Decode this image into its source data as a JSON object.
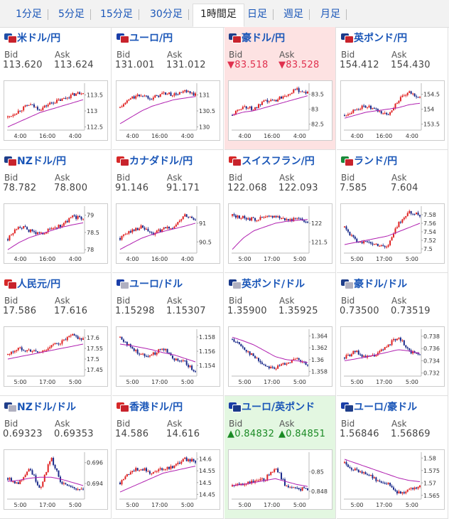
{
  "tabs": [
    {
      "label": "1分足",
      "active": false
    },
    {
      "label": "5分足",
      "active": false
    },
    {
      "label": "15分足",
      "active": false
    },
    {
      "label": "30分足",
      "active": false
    },
    {
      "label": "1時間足",
      "active": true
    },
    {
      "label": "日足",
      "active": false
    },
    {
      "label": "週足",
      "active": false
    },
    {
      "label": "月足",
      "active": false
    }
  ],
  "labels": {
    "bid": "Bid",
    "ask": "Ask"
  },
  "pairs": [
    {
      "name": "米ドル/円",
      "bid": "113.620",
      "ask": "113.624",
      "state": "none",
      "flag": [
        "#1f4ea6",
        "#c8232c"
      ],
      "chart_data": {
        "type": "candlestick",
        "yticks": [
          "113.5",
          "113",
          "112.5"
        ],
        "ylim": [
          112.4,
          113.8
        ],
        "xticks": [
          "4:00",
          "16:00",
          "4:00"
        ],
        "trend": [
          112.8,
          113.0,
          113.2,
          113.05,
          113.25,
          113.35,
          113.5,
          113.6
        ],
        "ma": [
          112.5,
          112.65,
          112.8,
          112.95,
          113.05,
          113.15,
          113.25,
          113.35
        ]
      }
    },
    {
      "name": "ユーロ/円",
      "bid": "131.001",
      "ask": "131.012",
      "state": "none",
      "flag": [
        "#1a3ea8",
        "#c8232c"
      ],
      "chart_data": {
        "type": "candlestick",
        "yticks": [
          "131",
          "130.5",
          "130"
        ],
        "ylim": [
          129.9,
          131.3
        ],
        "xticks": [
          "4:00",
          "16:00",
          "4:00"
        ],
        "trend": [
          130.6,
          130.9,
          131.0,
          130.9,
          131.05,
          131.0,
          131.1,
          131.0
        ],
        "ma": [
          130.1,
          130.3,
          130.5,
          130.65,
          130.75,
          130.85,
          130.9,
          130.95
        ]
      }
    },
    {
      "name": "豪ドル/円",
      "bid": "▼83.518",
      "ask": "▼83.528",
      "state": "down",
      "flag": [
        "#1f3e8a",
        "#c8232c"
      ],
      "chart_data": {
        "type": "candlestick",
        "yticks": [
          "83.5",
          "83",
          "82.5"
        ],
        "ylim": [
          82.3,
          83.8
        ],
        "xticks": [
          "4:00",
          "16:00",
          "4:00"
        ],
        "trend": [
          82.8,
          83.1,
          83.0,
          83.25,
          83.3,
          83.5,
          83.65,
          83.55
        ],
        "ma": [
          82.8,
          82.9,
          82.95,
          83.05,
          83.15,
          83.25,
          83.35,
          83.45
        ]
      }
    },
    {
      "name": "英ポンド/円",
      "bid": "154.412",
      "ask": "154.430",
      "state": "none",
      "flag": [
        "#1a3a8a",
        "#c8232c"
      ],
      "chart_data": {
        "type": "candlestick",
        "yticks": [
          "154.5",
          "154",
          "153.5"
        ],
        "ylim": [
          153.3,
          154.8
        ],
        "xticks": [
          "4:00",
          "16:00",
          "4:00"
        ],
        "trend": [
          153.8,
          154.0,
          154.1,
          153.95,
          153.8,
          154.3,
          154.55,
          154.4
        ],
        "ma": [
          153.7,
          153.8,
          153.9,
          153.95,
          154.0,
          154.05,
          154.15,
          154.2
        ]
      }
    },
    {
      "name": "NZドル/円",
      "bid": "78.782",
      "ask": "78.800",
      "state": "none",
      "flag": [
        "#1f3e8a",
        "#c8232c"
      ],
      "chart_data": {
        "type": "candlestick",
        "yticks": [
          "79",
          "78.5",
          "78"
        ],
        "ylim": [
          77.9,
          79.2
        ],
        "xticks": [
          "4:00",
          "16:00",
          "4:00"
        ],
        "trend": [
          78.3,
          78.7,
          78.55,
          78.45,
          78.6,
          78.7,
          78.95,
          78.9
        ],
        "ma": [
          78.0,
          78.2,
          78.35,
          78.45,
          78.55,
          78.65,
          78.72,
          78.78
        ]
      }
    },
    {
      "name": "カナダドル/円",
      "bid": "91.146",
      "ask": "91.171",
      "state": "none",
      "flag": [
        "#d62828",
        "#c8232c"
      ],
      "chart_data": {
        "type": "candlestick",
        "yticks": [
          "91",
          "90.5"
        ],
        "ylim": [
          90.2,
          91.4
        ],
        "xticks": [
          "4:00",
          "16:00",
          "4:00"
        ],
        "trend": [
          90.6,
          90.8,
          90.9,
          90.7,
          90.85,
          90.9,
          91.2,
          91.1
        ],
        "ma": [
          90.3,
          90.45,
          90.6,
          90.7,
          90.78,
          90.85,
          90.92,
          91.0
        ]
      }
    },
    {
      "name": "スイスフラン/円",
      "bid": "122.068",
      "ask": "122.093",
      "state": "none",
      "flag": [
        "#d62828",
        "#c8232c"
      ],
      "chart_data": {
        "type": "candlestick",
        "yticks": [
          "122",
          "121.5"
        ],
        "ylim": [
          121.2,
          122.4
        ],
        "xticks": [
          "5:00",
          "17:00",
          "5:00"
        ],
        "trend": [
          122.2,
          122.15,
          122.1,
          122.15,
          122.2,
          122.1,
          122.1,
          122.05
        ],
        "ma": [
          121.3,
          121.6,
          121.8,
          121.9,
          122.0,
          122.05,
          122.08,
          122.1
        ]
      }
    },
    {
      "name": "ランド/円",
      "bid": "7.585",
      "ask": "7.604",
      "state": "none",
      "flag": [
        "#1a8a3a",
        "#c8232c"
      ],
      "chart_data": {
        "type": "candlestick",
        "yticks": [
          "7.58",
          "7.56",
          "7.54",
          "7.52",
          "7.5"
        ],
        "ylim": [
          7.49,
          7.595
        ],
        "xticks": [
          "5:00",
          "17:00",
          "5:00"
        ],
        "trend": [
          7.55,
          7.52,
          7.515,
          7.51,
          7.505,
          7.56,
          7.585,
          7.58
        ],
        "ma": [
          7.51,
          7.515,
          7.52,
          7.525,
          7.53,
          7.54,
          7.55,
          7.56
        ]
      }
    },
    {
      "name": "人民元/円",
      "bid": "17.586",
      "ask": "17.616",
      "state": "none",
      "flag": [
        "#d62828",
        "#c8232c"
      ],
      "chart_data": {
        "type": "candlestick",
        "yticks": [
          "17.6",
          "17.55",
          "17.5",
          "17.45"
        ],
        "ylim": [
          17.42,
          17.63
        ],
        "xticks": [
          "5:00",
          "17:00",
          "5:00"
        ],
        "trend": [
          17.52,
          17.55,
          17.54,
          17.53,
          17.56,
          17.58,
          17.61,
          17.59
        ],
        "ma": [
          17.5,
          17.51,
          17.52,
          17.53,
          17.54,
          17.55,
          17.56,
          17.57
        ]
      }
    },
    {
      "name": "ユーロ/ドル",
      "bid": "1.15298",
      "ask": "1.15307",
      "state": "none",
      "flag": [
        "#1a3ea8",
        "#b0b0c0"
      ],
      "chart_data": {
        "type": "candlestick",
        "yticks": [
          "1.158",
          "1.156",
          "1.154"
        ],
        "ylim": [
          1.1525,
          1.1588
        ],
        "xticks": [
          "5:00",
          "17:00",
          "5:00"
        ],
        "trend": [
          1.158,
          1.1565,
          1.1555,
          1.1555,
          1.1565,
          1.155,
          1.1545,
          1.153
        ],
        "ma": [
          1.157,
          1.1568,
          1.1565,
          1.1562,
          1.1558,
          1.1555,
          1.155,
          1.1545
        ]
      }
    },
    {
      "name": "英ポンド/ドル",
      "bid": "1.35900",
      "ask": "1.35925",
      "state": "none",
      "flag": [
        "#1a3a8a",
        "#b0b0c0"
      ],
      "chart_data": {
        "type": "candlestick",
        "yticks": [
          "1.364",
          "1.362",
          "1.36",
          "1.358"
        ],
        "ylim": [
          1.3572,
          1.3648
        ],
        "xticks": [
          "5:00",
          "17:00",
          "5:00"
        ],
        "trend": [
          1.3635,
          1.362,
          1.3605,
          1.359,
          1.3585,
          1.3595,
          1.36,
          1.359
        ],
        "ma": [
          1.3638,
          1.3632,
          1.3625,
          1.3615,
          1.3605,
          1.36,
          1.3598,
          1.3595
        ]
      }
    },
    {
      "name": "豪ドル/ドル",
      "bid": "0.73500",
      "ask": "0.73519",
      "state": "none",
      "flag": [
        "#1f3e8a",
        "#b0b0c0"
      ],
      "chart_data": {
        "type": "candlestick",
        "yticks": [
          "0.738",
          "0.736",
          "0.734",
          "0.732"
        ],
        "ylim": [
          0.7315,
          0.7388
        ],
        "xticks": [
          "5:00",
          "17:00",
          "5:00"
        ],
        "trend": [
          0.7345,
          0.7355,
          0.7345,
          0.735,
          0.7365,
          0.738,
          0.7355,
          0.735
        ],
        "ma": [
          0.734,
          0.7343,
          0.7346,
          0.735,
          0.7354,
          0.7358,
          0.7356,
          0.7352
        ]
      }
    },
    {
      "name": "NZドル/ドル",
      "bid": "0.69323",
      "ask": "0.69353",
      "state": "none",
      "flag": [
        "#1f3e8a",
        "#b0b0c0"
      ],
      "chart_data": {
        "type": "candlestick",
        "yticks": [
          "0.696",
          "0.694"
        ],
        "ylim": [
          0.6925,
          0.6968
        ],
        "xticks": [
          "5:00",
          "17:00",
          "5:00"
        ],
        "trend": [
          0.6945,
          0.694,
          0.6955,
          0.6935,
          0.6965,
          0.694,
          0.6935,
          0.6935
        ],
        "ma": [
          0.6942,
          0.6943,
          0.6945,
          0.6946,
          0.6946,
          0.6944,
          0.6941,
          0.6938
        ]
      }
    },
    {
      "name": "香港ドル/円",
      "bid": "14.586",
      "ask": "14.616",
      "state": "none",
      "flag": [
        "#d62828",
        "#c8232c"
      ],
      "chart_data": {
        "type": "candlestick",
        "yticks": [
          "14.6",
          "14.55",
          "14.5",
          "14.45"
        ],
        "ylim": [
          14.43,
          14.62
        ],
        "xticks": [
          "5:00",
          "17:00",
          "5:00"
        ],
        "trend": [
          14.5,
          14.55,
          14.56,
          14.54,
          14.56,
          14.57,
          14.6,
          14.59
        ],
        "ma": [
          14.46,
          14.48,
          14.5,
          14.52,
          14.54,
          14.55,
          14.56,
          14.57
        ]
      }
    },
    {
      "name": "ユーロ/英ポンド",
      "bid": "▲0.84832",
      "ask": "▲0.84851",
      "state": "up",
      "flag": [
        "#1a3ea8",
        "#1a3a8a"
      ],
      "chart_data": {
        "type": "candlestick",
        "yticks": [
          "0.85",
          "0.848"
        ],
        "ylim": [
          0.8472,
          0.8518
        ],
        "xticks": [
          "5:00",
          "17:00",
          "5:00"
        ],
        "trend": [
          0.8485,
          0.8488,
          0.849,
          0.8492,
          0.8505,
          0.8485,
          0.8482,
          0.8483
        ],
        "ma": [
          0.8486,
          0.8487,
          0.8489,
          0.8491,
          0.8493,
          0.849,
          0.8487,
          0.8485
        ]
      }
    },
    {
      "name": "ユーロ/豪ドル",
      "bid": "1.56846",
      "ask": "1.56869",
      "state": "none",
      "flag": [
        "#1a3ea8",
        "#1f3e8a"
      ],
      "chart_data": {
        "type": "candlestick",
        "yticks": [
          "1.58",
          "1.575",
          "1.57",
          "1.565"
        ],
        "ylim": [
          1.5635,
          1.5815
        ],
        "xticks": [
          "5:00",
          "17:00",
          "5:00"
        ],
        "trend": [
          1.578,
          1.575,
          1.574,
          1.571,
          1.57,
          1.566,
          1.567,
          1.5685
        ],
        "ma": [
          1.5795,
          1.578,
          1.5765,
          1.575,
          1.5735,
          1.572,
          1.571,
          1.5705
        ]
      }
    }
  ]
}
